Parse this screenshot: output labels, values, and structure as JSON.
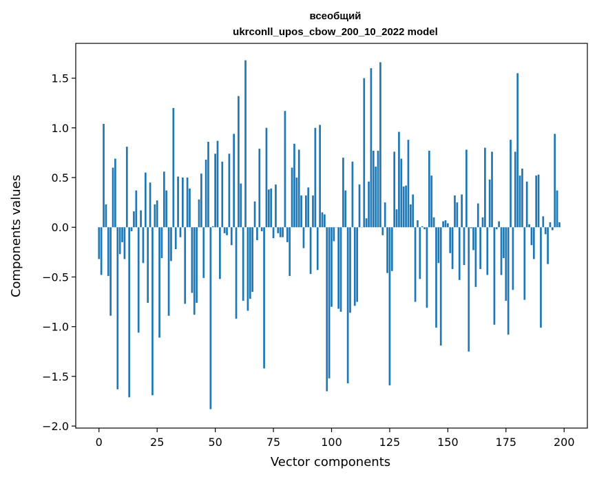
{
  "chart_data": {
    "type": "bar",
    "title_line1": "всеобщий",
    "title_line2": "ukrconll_upos_cbow_200_10_2022 model",
    "xlabel": "Vector components",
    "ylabel": "Components values",
    "xlim": [
      -10,
      210
    ],
    "ylim": [
      -2.02,
      1.85
    ],
    "xticks": [
      0,
      25,
      50,
      75,
      100,
      125,
      150,
      175,
      200
    ],
    "yticks": [
      -2.0,
      -1.5,
      -1.0,
      -0.5,
      0.0,
      0.5,
      1.0,
      1.5
    ],
    "ytick_labels": [
      "−2.0",
      "−1.5",
      "−1.0",
      "−0.5",
      "0.0",
      "0.5",
      "1.0",
      "1.5"
    ],
    "xtick_labels": [
      "0",
      "25",
      "50",
      "75",
      "100",
      "125",
      "150",
      "175",
      "200"
    ],
    "bar_color": "#1f77b4",
    "grid": false,
    "values": [
      -0.32,
      -0.48,
      1.04,
      0.23,
      -0.49,
      -0.89,
      0.6,
      0.69,
      -1.63,
      -0.27,
      -0.15,
      -0.32,
      0.81,
      -1.71,
      -0.04,
      0.16,
      0.37,
      -1.06,
      0.17,
      -0.36,
      0.55,
      -0.76,
      0.45,
      -1.69,
      0.23,
      0.27,
      -1.11,
      -0.31,
      0.56,
      0.37,
      -0.89,
      -0.34,
      1.2,
      -0.22,
      0.51,
      -0.1,
      0.5,
      -0.77,
      0.5,
      0.39,
      -0.66,
      -0.88,
      -0.76,
      0.28,
      0.54,
      -0.51,
      0.68,
      0.86,
      -1.83,
      0.01,
      0.74,
      0.87,
      -0.52,
      0.66,
      -0.06,
      -0.08,
      0.74,
      -0.18,
      0.94,
      -0.92,
      1.32,
      0.44,
      -0.74,
      1.68,
      -0.84,
      -0.72,
      -0.65,
      0.26,
      -0.13,
      0.79,
      -0.04,
      -1.42,
      1.0,
      0.38,
      0.39,
      -0.11,
      0.43,
      -0.06,
      -0.1,
      -0.1,
      1.17,
      -0.15,
      -0.49,
      0.6,
      0.84,
      0.5,
      0.78,
      0.32,
      -0.21,
      0.32,
      0.4,
      -0.47,
      0.32,
      1.0,
      -0.43,
      1.03,
      0.15,
      0.13,
      -1.65,
      -1.52,
      -0.8,
      -0.14,
      0.0,
      -0.82,
      -0.85,
      0.7,
      0.37,
      -1.57,
      -0.86,
      0.66,
      -0.79,
      -0.75,
      0.43,
      0.0,
      1.5,
      0.09,
      0.46,
      1.6,
      0.77,
      0.61,
      0.77,
      1.66,
      -0.08,
      0.25,
      -0.46,
      -1.59,
      -0.44,
      0.76,
      0.18,
      0.96,
      0.69,
      0.41,
      0.42,
      0.88,
      0.23,
      0.33,
      -0.75,
      0.07,
      -0.52,
      0.01,
      -0.02,
      -0.81,
      0.77,
      0.52,
      0.1,
      -1.01,
      -0.36,
      -1.19,
      0.06,
      0.07,
      0.04,
      -0.26,
      -0.42,
      0.32,
      0.25,
      -0.53,
      0.33,
      -0.38,
      0.78,
      -1.25,
      -0.01,
      -0.23,
      -0.6,
      0.24,
      -0.42,
      0.1,
      0.8,
      -0.48,
      0.48,
      0.76,
      -0.98,
      -0.02,
      0.06,
      -0.48,
      -0.31,
      -0.74,
      -1.08,
      0.88,
      -0.63,
      0.76,
      1.55,
      0.52,
      0.59,
      -0.73,
      0.46,
      0.03,
      -0.18,
      -0.32,
      0.52,
      0.53,
      -1.01,
      0.11,
      -0.07,
      -0.37,
      0.05,
      -0.03,
      0.94,
      0.37,
      0.05
    ]
  }
}
